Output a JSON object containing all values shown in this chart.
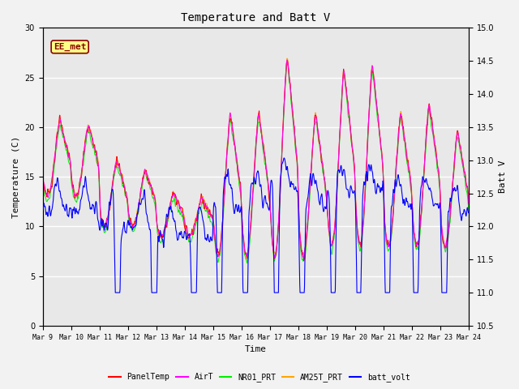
{
  "title": "Temperature and Batt V",
  "ylabel_left": "Temperature (C)",
  "ylabel_right": "Batt V",
  "xlabel": "Time",
  "ylim_left": [
    0,
    30
  ],
  "ylim_right": [
    10.5,
    15.0
  ],
  "yticks_left": [
    0,
    5,
    10,
    15,
    20,
    25,
    30
  ],
  "yticks_right": [
    10.5,
    11.0,
    11.5,
    12.0,
    12.5,
    13.0,
    13.5,
    14.0,
    14.5,
    15.0
  ],
  "xtick_labels": [
    "Mar 9",
    "Mar 10",
    "Mar 11",
    "Mar 12",
    "Mar 13",
    "Mar 14",
    "Mar 15",
    "Mar 16",
    "Mar 17",
    "Mar 18",
    "Mar 19",
    "Mar 20",
    "Mar 21",
    "Mar 22",
    "Mar 23",
    "Mar 24"
  ],
  "annotation_text": "EE_met",
  "annotation_color": "#8B0000",
  "annotation_bg": "#FFFF88",
  "line_colors": {
    "PanelTemp": "#FF0000",
    "AirT": "#FF00FF",
    "NR01_PRT": "#00EE00",
    "AM25T_PRT": "#FFA500",
    "batt_volt": "#0000FF"
  },
  "legend_entries": [
    "PanelTemp",
    "AirT",
    "NR01_PRT",
    "AM25T_PRT",
    "batt_volt"
  ],
  "plot_bg": "#E8E8E8",
  "fig_bg": "#F2F2F2",
  "title_fontsize": 10,
  "axis_fontsize": 8,
  "tick_fontsize": 7,
  "n_days": 15,
  "n_pts_per_day": 96
}
